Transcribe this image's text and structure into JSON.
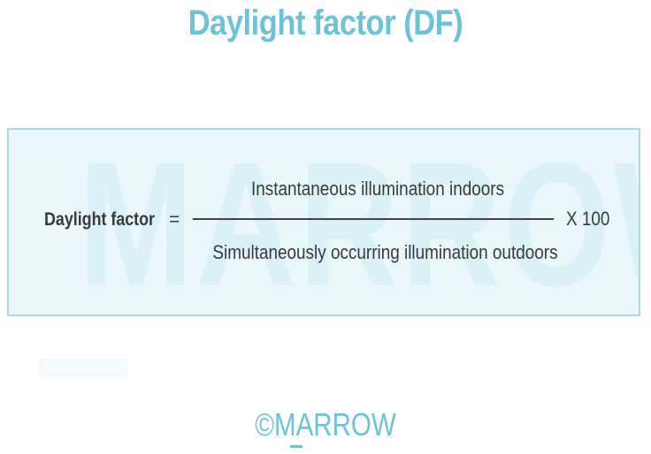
{
  "title": "Daylight factor (DF)",
  "formula": {
    "watermark": "MARROW",
    "label": "Daylight factor",
    "equals": "=",
    "numerator": "Instantaneous illumination indoors",
    "denominator": "Simultaneously occurring illumination outdoors",
    "multiplier": "X 100"
  },
  "footer": {
    "logo": "©MARROW"
  },
  "colors": {
    "accent": "#6cc2d8",
    "box_background": "#eaf7fa",
    "box_border": "#a6dbe6",
    "text": "#3a3a3a"
  }
}
